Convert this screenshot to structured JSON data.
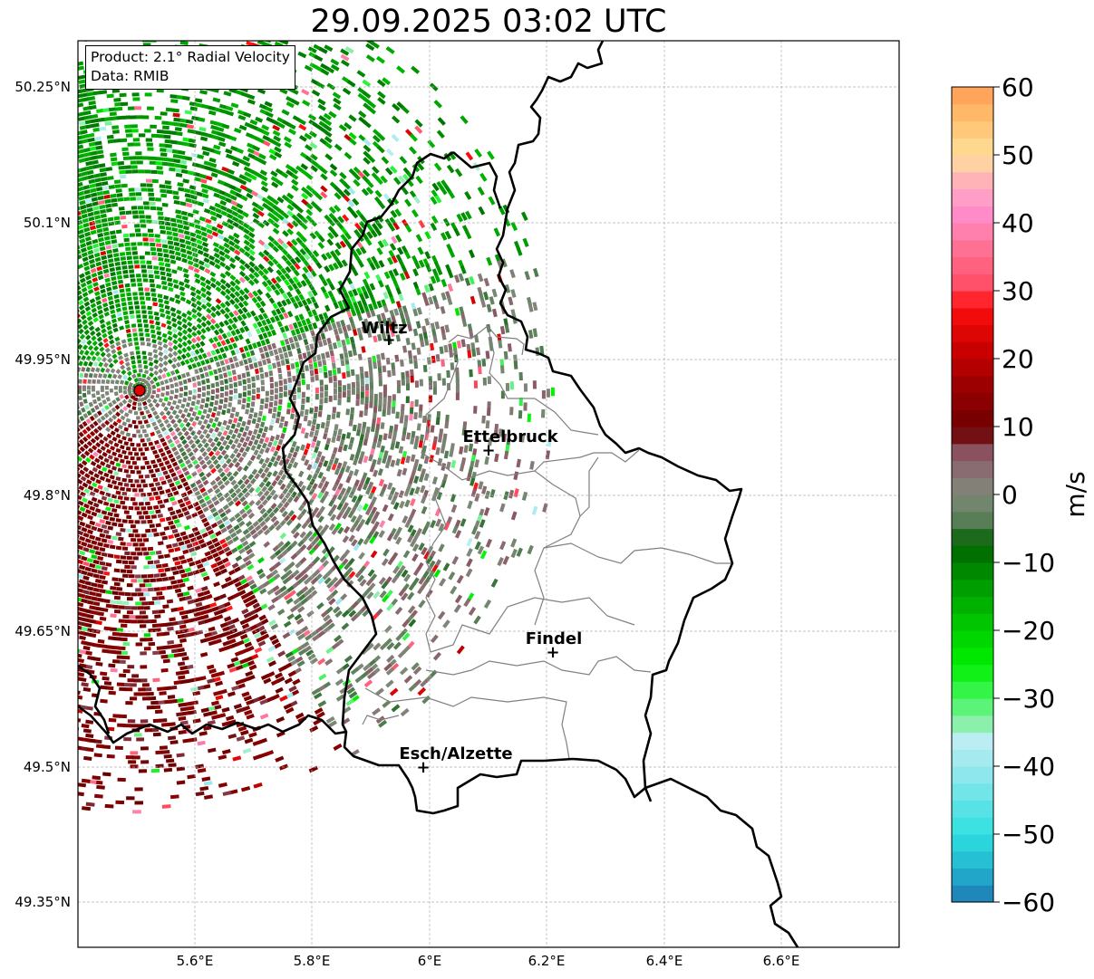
{
  "title": "29.09.2025 03:02 UTC",
  "info": {
    "product": "Product: 2.1° Radial Velocity",
    "source": "Data: RMIB"
  },
  "lat_ticks": [
    "50.25°N",
    "50.1°N",
    "49.95°N",
    "49.8°N",
    "49.65°N",
    "49.5°N",
    "49.35°N"
  ],
  "lon_ticks": [
    "5.6°E",
    "5.8°E",
    "6°E",
    "6.2°E",
    "6.4°E",
    "6.6°E"
  ],
  "cities": [
    {
      "id": "wiltz",
      "name": "Wiltz",
      "lon": 5.93,
      "lat": 49.967
    },
    {
      "id": "ettelbruck",
      "name": "Ettelbruck",
      "lon": 6.1,
      "lat": 49.848
    },
    {
      "id": "findel",
      "name": "Findel",
      "lon": 6.21,
      "lat": 49.626
    },
    {
      "id": "esch",
      "name": "Esch/Alzette",
      "lon": 5.99,
      "lat": 49.5
    }
  ],
  "radar_site": {
    "lon": 5.505,
    "lat": 49.915
  },
  "map_extent": {
    "lon": [
      5.4,
      6.8
    ],
    "lat": [
      49.3,
      50.3
    ]
  },
  "colorbar": {
    "label": "m/s",
    "min": -60,
    "max": 60,
    "ticks": [
      "60",
      "50",
      "40",
      "30",
      "20",
      "10",
      "0",
      "−10",
      "−20",
      "−30",
      "−40",
      "−50",
      "−60"
    ],
    "stops": [
      {
        "v": -60,
        "c": "#1f77b4"
      },
      {
        "v": -55,
        "c": "#22b5d0"
      },
      {
        "v": -50,
        "c": "#2ee0e0"
      },
      {
        "v": -40,
        "c": "#9ae8ee"
      },
      {
        "v": -36,
        "c": "#bdeef2"
      },
      {
        "v": -34,
        "c": "#8ff0b0"
      },
      {
        "v": -30,
        "c": "#45f560"
      },
      {
        "v": -25,
        "c": "#00f000"
      },
      {
        "v": -18,
        "c": "#00c000"
      },
      {
        "v": -12,
        "c": "#009000"
      },
      {
        "v": -7,
        "c": "#006000"
      },
      {
        "v": -5,
        "c": "#4a7a4a"
      },
      {
        "v": 0,
        "c": "#7f8a7a"
      },
      {
        "v": 4,
        "c": "#8a6a70"
      },
      {
        "v": 8,
        "c": "#884050"
      },
      {
        "v": 9,
        "c": "#6a0000"
      },
      {
        "v": 16,
        "c": "#9a0000"
      },
      {
        "v": 22,
        "c": "#d00000"
      },
      {
        "v": 28,
        "c": "#ff1010"
      },
      {
        "v": 30,
        "c": "#ff4a60"
      },
      {
        "v": 36,
        "c": "#ff7090"
      },
      {
        "v": 42,
        "c": "#ff90d0"
      },
      {
        "v": 46,
        "c": "#ffb0b8"
      },
      {
        "v": 50,
        "c": "#ffe09a"
      },
      {
        "v": 55,
        "c": "#ffc070"
      },
      {
        "v": 60,
        "c": "#ff9a50"
      }
    ]
  }
}
